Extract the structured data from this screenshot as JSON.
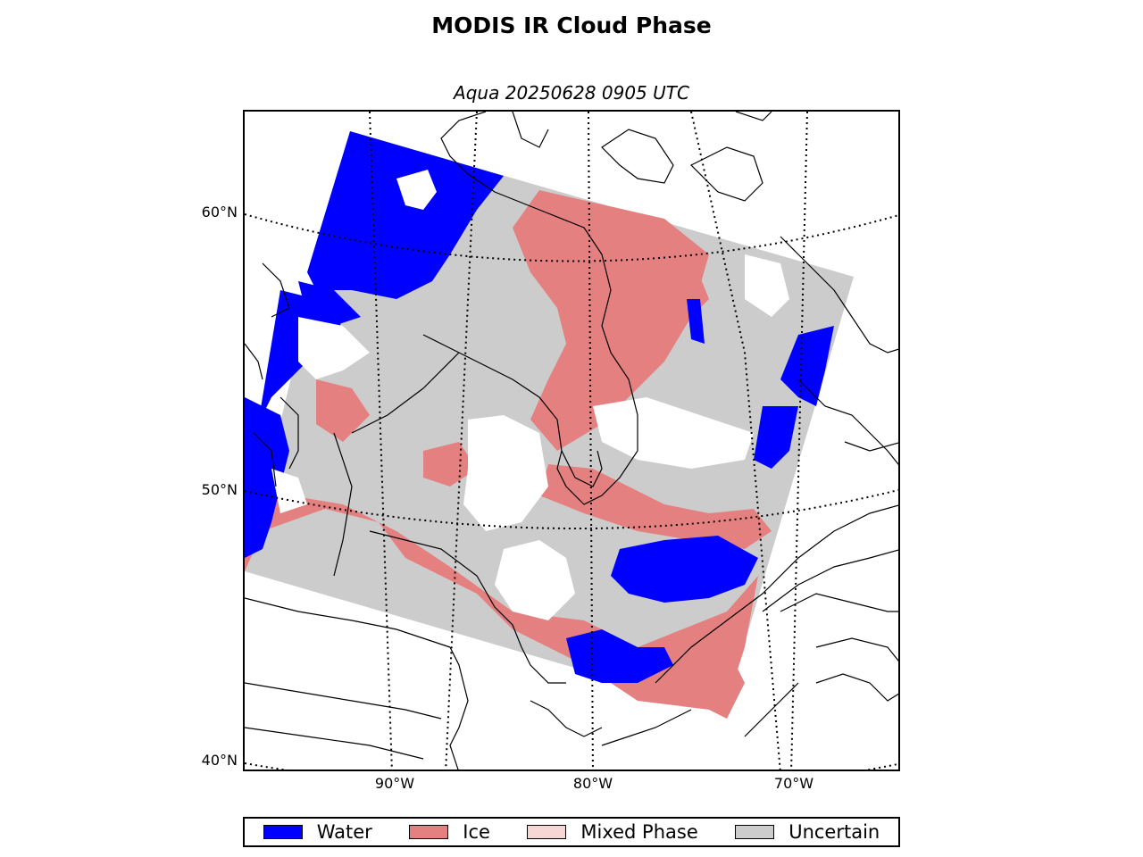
{
  "figure": {
    "title": "MODIS IR Cloud Phase",
    "subtitle": "Aqua 20250628 0905 UTC"
  },
  "axes": {
    "lat_labels": [
      "60°N",
      "50°N",
      "40°N"
    ],
    "lon_labels": [
      "90°W",
      "80°W",
      "70°W"
    ]
  },
  "legend": {
    "items": [
      {
        "label": "Water",
        "color": "#0000ff"
      },
      {
        "label": "Ice",
        "color": "#e58080"
      },
      {
        "label": "Mixed Phase",
        "color": "#f7d6d6"
      },
      {
        "label": "Uncertain",
        "color": "#cccccc"
      }
    ]
  },
  "colors": {
    "water": "#0000ff",
    "ice": "#e58080",
    "mixed": "#f7d6d6",
    "uncertain": "#cccccc",
    "clear": "#ffffff",
    "coastline": "#000000"
  }
}
